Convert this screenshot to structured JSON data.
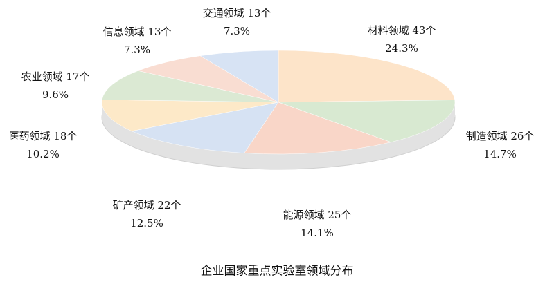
{
  "chart_data": {
    "type": "pie3d",
    "title": "企业国家重点实验室领域分布",
    "categories": [
      "材料领域  43个",
      "制造领域  26个",
      "能源领域  25个",
      "矿产领域  22个",
      "医药领域  18个",
      "农业领域  17个",
      "信息领域  13个",
      "交通领域  13个"
    ],
    "values": [
      24.3,
      14.7,
      14.1,
      12.5,
      10.2,
      9.6,
      7.3,
      7.3
    ],
    "value_labels": [
      "24.3%",
      "14.7%",
      "14.1%",
      "12.5%",
      "10.2%",
      "9.6%",
      "7.3%",
      "7.3%"
    ],
    "colors": [
      "#fde4c9",
      "#d8e9d1",
      "#f9d6c8",
      "#d6e2f3",
      "#fde9c8",
      "#dbe9d3",
      "#f9ddd2",
      "#d7e3f4"
    ]
  }
}
